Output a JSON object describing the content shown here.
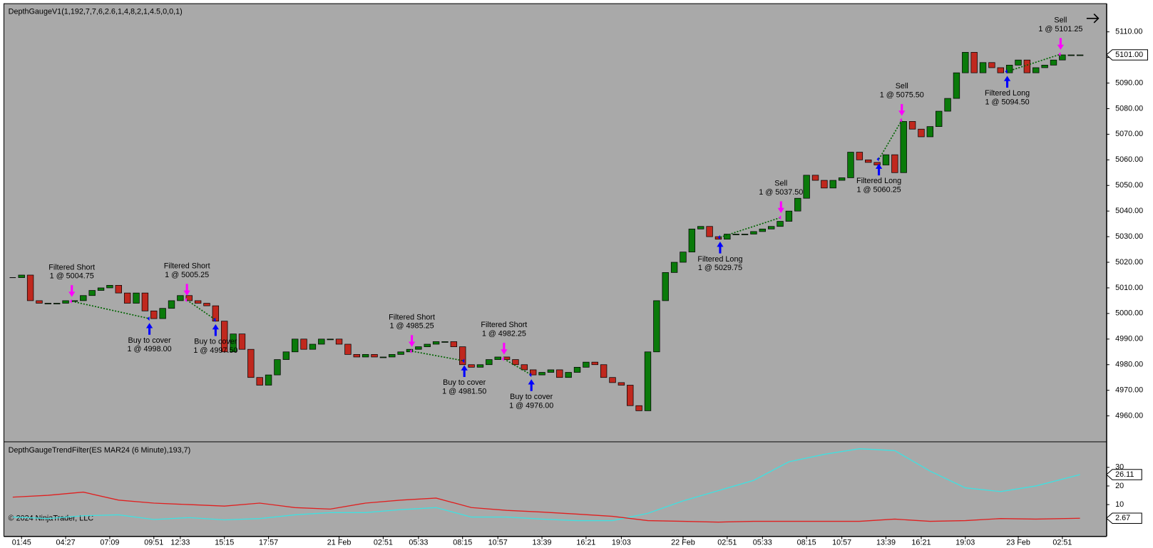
{
  "chart_data": [
    {
      "type": "candlestick",
      "title": "DepthGaugeV1(1,192,7,7,6,2.6,1,4,8,2,1,4.5,0,0,1)",
      "background": "#a9a9a9",
      "up_color": "#0a7a0a",
      "down_color": "#c0281e",
      "closes": [
        5014,
        5015,
        5005,
        5004,
        5004,
        5004,
        5005,
        5005,
        5007,
        5009,
        5010,
        5011,
        5008,
        5004,
        5008,
        5001,
        4998,
        5002,
        5005,
        5007,
        5005,
        5004,
        5003,
        4997,
        4985,
        4992,
        4986,
        4975,
        4972,
        4976,
        4982,
        4985,
        4990,
        4986,
        4988,
        4990,
        4990,
        4988,
        4984,
        4983,
        4984,
        4983,
        4983,
        4984,
        4985,
        4986,
        4987,
        4988,
        4989,
        4989,
        4987,
        4980,
        4979,
        4980,
        4982,
        4983,
        4982,
        4980,
        4978,
        4976,
        4977,
        4978,
        4975,
        4977,
        4979,
        4981,
        4980,
        4975,
        4973,
        4972,
        4964,
        4962,
        4985,
        5005,
        5016,
        5020,
        5024,
        5033,
        5034,
        5030,
        5029,
        5031,
        5031,
        5031,
        5032,
        5033,
        5034,
        5036,
        5040,
        5045,
        5054,
        5052,
        5049,
        5052,
        5053,
        5063,
        5060,
        5059,
        5058,
        5062,
        5055,
        5075,
        5072,
        5069,
        5073,
        5079,
        5084,
        5094,
        5102,
        5094,
        5098,
        5096,
        5094,
        5097,
        5099,
        5094,
        5096,
        5097,
        5099,
        5101,
        5101,
        5101
      ],
      "last_label": "5101.00",
      "xlim": [
        -1,
        124
      ],
      "xticks": [
        {
          "value": 1,
          "label": "01:45"
        },
        {
          "value": 6,
          "label": "04:27"
        },
        {
          "value": 11,
          "label": "07:09"
        },
        {
          "value": 16,
          "label": "09:51"
        },
        {
          "value": 19,
          "label": "12:33"
        },
        {
          "value": 24,
          "label": "15:15"
        },
        {
          "value": 29,
          "label": "17:57"
        },
        {
          "value": 37,
          "label": "21 Feb"
        },
        {
          "value": 42,
          "label": "02:51"
        },
        {
          "value": 46,
          "label": "05:33"
        },
        {
          "value": 51,
          "label": "08:15"
        },
        {
          "value": 55,
          "label": "10:57"
        },
        {
          "value": 60,
          "label": "13:39"
        },
        {
          "value": 65,
          "label": "16:21"
        },
        {
          "value": 69,
          "label": "19:03"
        },
        {
          "value": 76,
          "label": "22 Feb"
        },
        {
          "value": 81,
          "label": "02:51"
        },
        {
          "value": 85,
          "label": "05:33"
        },
        {
          "value": 90,
          "label": "08:15"
        },
        {
          "value": 94,
          "label": "10:57"
        },
        {
          "value": 99,
          "label": "13:39"
        },
        {
          "value": 103,
          "label": "16:21"
        },
        {
          "value": 108,
          "label": "19:03"
        },
        {
          "value": 114,
          "label": "23 Feb"
        },
        {
          "value": 119,
          "label": "02:51"
        }
      ],
      "ylim": [
        4950,
        5121
      ],
      "yticks": [
        {
          "value": 4960,
          "label": "4960.00"
        },
        {
          "value": 4970,
          "label": "4970.00"
        },
        {
          "value": 4980,
          "label": "4980.00"
        },
        {
          "value": 4990,
          "label": "4990.00"
        },
        {
          "value": 5000,
          "label": "5000.00"
        },
        {
          "value": 5010,
          "label": "5010.00"
        },
        {
          "value": 5020,
          "label": "5020.00"
        },
        {
          "value": 5030,
          "label": "5030.00"
        },
        {
          "value": 5040,
          "label": "5040.00"
        },
        {
          "value": 5050,
          "label": "5050.00"
        },
        {
          "value": 5060,
          "label": "5060.00"
        },
        {
          "value": 5070,
          "label": "5070.00"
        },
        {
          "value": 5080,
          "label": "5080.00"
        },
        {
          "value": 5090,
          "label": "5090.00"
        },
        {
          "value": 5100,
          "label": "5100.00"
        },
        {
          "value": 5110,
          "label": "5110.00"
        }
      ],
      "sell_color": "#ff00ff",
      "buy_color": "#0000ff",
      "trade_line_color": "#006400",
      "trades": [
        {
          "name": "Filtered Short",
          "label": "1 @ 5004.75",
          "price": 5004.75,
          "bar": 6.7,
          "side": "sell"
        },
        {
          "name": "Buy to cover",
          "label": "1 @ 4998.00",
          "price": 4998,
          "bar": 15.5,
          "side": "buy"
        },
        {
          "name": "Filtered Short",
          "label": "1 @ 5005.25",
          "price": 5005.25,
          "bar": 19.75,
          "side": "sell"
        },
        {
          "name": "Buy to cover",
          "label": "1 @ 4997.50",
          "price": 4997.5,
          "bar": 23,
          "side": "buy"
        },
        {
          "name": "Filtered Short",
          "label": "1 @ 4985.25",
          "price": 4985.25,
          "bar": 45.25,
          "side": "sell"
        },
        {
          "name": "Buy to cover",
          "label": "1 @ 4981.50",
          "price": 4981.5,
          "bar": 51.2,
          "side": "buy"
        },
        {
          "name": "Filtered Short",
          "label": "1 @ 4982.25",
          "price": 4982.25,
          "bar": 55.7,
          "side": "sell"
        },
        {
          "name": "Buy to cover",
          "label": "1 @ 4976.00",
          "price": 4976,
          "bar": 58.8,
          "side": "buy"
        },
        {
          "name": "Filtered Long",
          "label": "1 @ 5029.75",
          "price": 5029.75,
          "bar": 80.2,
          "side": "buy"
        },
        {
          "name": "Sell",
          "label": "1 @ 5037.50",
          "price": 5037.5,
          "bar": 87.1,
          "side": "sell"
        },
        {
          "name": "Filtered Long",
          "label": "1 @ 5060.25",
          "price": 5060.25,
          "bar": 98.2,
          "side": "buy"
        },
        {
          "name": "Sell",
          "label": "1 @ 5075.50",
          "price": 5075.5,
          "bar": 100.8,
          "side": "sell"
        },
        {
          "name": "Filtered Long",
          "label": "1 @ 5094.50",
          "price": 5094.5,
          "bar": 112.75,
          "side": "buy"
        },
        {
          "name": "Sell",
          "label": "1 @ 5101.25",
          "price": 5101.25,
          "bar": 118.8,
          "side": "sell"
        }
      ]
    },
    {
      "type": "line",
      "title": "DepthGaugeTrendFilter(ES MAR24 (6 Minute),193,7)",
      "background": "#a9a9a9",
      "x": [
        0,
        4,
        8,
        12,
        16,
        20,
        24,
        28,
        32,
        36,
        40,
        44,
        48,
        52,
        56,
        60,
        64,
        68,
        72,
        76,
        80,
        84,
        88,
        92,
        96,
        100,
        104,
        108,
        112,
        116,
        121
      ],
      "xlim": [
        -1,
        124
      ],
      "ylim": [
        -7,
        43.5
      ],
      "yticks": [
        10,
        20,
        30
      ],
      "series": [
        {
          "color": "#40e0e0",
          "last_label": "26.11",
          "values": [
            3.3,
            2.5,
            4,
            4.5,
            2,
            3,
            1.8,
            2.5,
            4.5,
            5.7,
            5.7,
            7.3,
            8.4,
            3.3,
            3.3,
            2.2,
            1.4,
            1.4,
            5.3,
            12,
            17.5,
            23,
            33,
            37,
            40,
            39,
            28,
            19,
            17,
            20,
            26.11
          ]
        },
        {
          "color": "#e02020",
          "last_label": "2.67",
          "values": [
            14,
            15,
            16.7,
            12.4,
            10.8,
            10,
            9.2,
            10.8,
            8.4,
            7.6,
            10.8,
            12.4,
            13.5,
            8.4,
            6.9,
            6,
            4.9,
            3.7,
            1.4,
            1,
            0.6,
            1,
            1,
            1,
            1,
            2.2,
            1,
            1.4,
            2.5,
            2.2,
            2.67
          ]
        }
      ]
    }
  ],
  "footer": "© 2024 NinjaTrader, LLC"
}
